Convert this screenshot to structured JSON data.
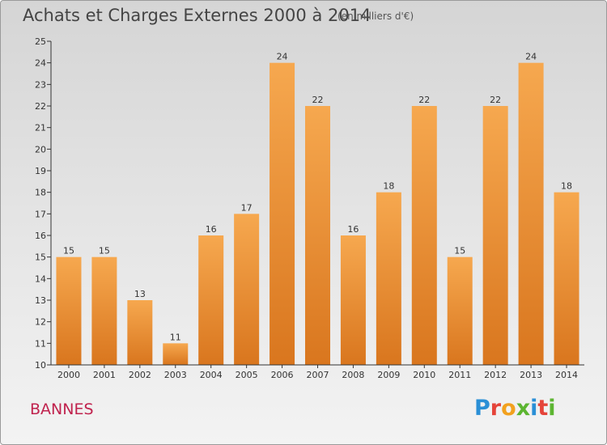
{
  "title": "Achats et Charges Externes 2000 à 2014",
  "subtitle": "(en milliers d'€)",
  "location": "BANNES",
  "brand": {
    "letters": [
      {
        "ch": "P",
        "color": "#2a8fd6"
      },
      {
        "ch": "r",
        "color": "#e5443a"
      },
      {
        "ch": "o",
        "color": "#f2a11e"
      },
      {
        "ch": "x",
        "color": "#5cb531"
      },
      {
        "ch": "i",
        "color": "#2a8fd6"
      },
      {
        "ch": "t",
        "color": "#e5443a"
      },
      {
        "ch": "i",
        "color": "#5cb531"
      }
    ]
  },
  "colors": {
    "bar_top": "#f6a84f",
    "bar_bottom": "#d9761e",
    "axis": "#333333",
    "text": "#333333"
  },
  "chart_data": {
    "type": "bar",
    "title": "Achats et Charges Externes 2000 à 2014",
    "subtitle": "(en milliers d'€)",
    "categories": [
      "2000",
      "2001",
      "2002",
      "2003",
      "2004",
      "2005",
      "2006",
      "2007",
      "2008",
      "2009",
      "2010",
      "2011",
      "2012",
      "2013",
      "2014"
    ],
    "values": [
      15,
      15,
      13,
      11,
      16,
      17,
      24,
      22,
      16,
      18,
      22,
      15,
      22,
      24,
      18
    ],
    "ylim": [
      10,
      25
    ],
    "yticks": [
      10,
      11,
      12,
      13,
      14,
      15,
      16,
      17,
      18,
      19,
      20,
      21,
      22,
      23,
      24,
      25
    ],
    "grid": false,
    "data_labels": true
  }
}
